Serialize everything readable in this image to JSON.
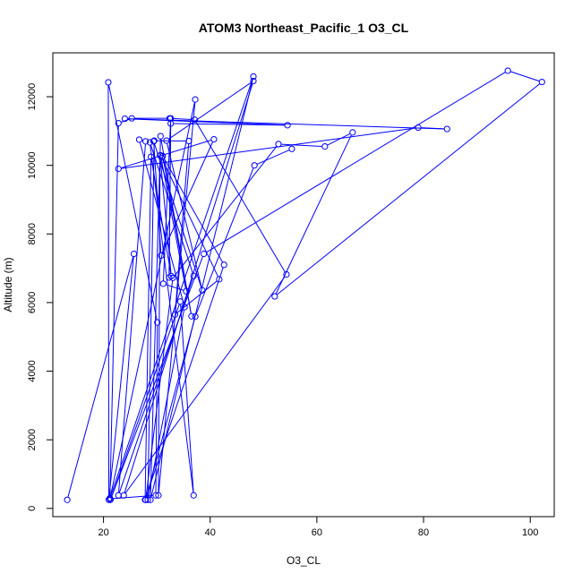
{
  "chart_data": {
    "type": "line",
    "title": "ATOM3 Northeast_Pacific_1 O3_CL",
    "xlabel": "O3_CL",
    "ylabel": "Altitude (m)",
    "xlim": [
      10.5,
      104.5
    ],
    "ylim": [
      -240,
      13280
    ],
    "x_ticks": [
      20,
      40,
      60,
      80,
      100
    ],
    "y_ticks": [
      0,
      2000,
      4000,
      6000,
      8000,
      10000,
      12000
    ],
    "grid": false,
    "series_color": "#0000ff",
    "series": [
      {
        "points": [
          [
            13.2,
            250
          ],
          [
            25.7,
            7420
          ],
          [
            21.0,
            250
          ],
          [
            20.9,
            12420
          ],
          [
            30.1,
            5420
          ],
          [
            29.8,
            380
          ],
          [
            21.2,
            280
          ],
          [
            37.2,
            11920
          ],
          [
            30.3,
            380
          ],
          [
            30.6,
            10290
          ],
          [
            32.7,
            6770
          ],
          [
            28.9,
            10250
          ],
          [
            27.8,
            250
          ],
          [
            42.6,
            7100
          ],
          [
            31.1,
            10270
          ],
          [
            36.5,
            5600
          ],
          [
            30.7,
            10850
          ],
          [
            28.8,
            250
          ],
          [
            48.1,
            12590
          ],
          [
            21.2,
            300
          ],
          [
            22.8,
            11230
          ],
          [
            25.3,
            11370
          ],
          [
            32.4,
            11370
          ],
          [
            37.1,
            11330
          ],
          [
            54.3,
            6820
          ],
          [
            23.8,
            380
          ],
          [
            48.1,
            12460
          ],
          [
            31.8,
            10720
          ],
          [
            38.5,
            6360
          ],
          [
            29.4,
            10700
          ],
          [
            30.8,
            7370
          ],
          [
            40.7,
            10760
          ],
          [
            22.8,
            9900
          ],
          [
            79.0,
            11100
          ],
          [
            84.4,
            11060
          ],
          [
            24.0,
            11360
          ],
          [
            54.5,
            11170
          ],
          [
            32.6,
            11220
          ],
          [
            32.3,
            6730
          ],
          [
            32.6,
            11370
          ],
          [
            31.2,
            6550
          ],
          [
            35.5,
            6330
          ],
          [
            30.7,
            10290
          ],
          [
            41.7,
            6680
          ],
          [
            33.4,
            5650
          ],
          [
            36.0,
            10710
          ],
          [
            29.5,
            10720
          ],
          [
            28.3,
            250
          ],
          [
            35.2,
            5870
          ],
          [
            26.7,
            10750
          ],
          [
            27.9,
            10700
          ],
          [
            22.8,
            380
          ],
          [
            36.9,
            6780
          ],
          [
            28.7,
            10670
          ],
          [
            36.9,
            380
          ],
          [
            34.4,
            6030
          ],
          [
            21.3,
            250
          ],
          [
            38.8,
            7420
          ],
          [
            95.8,
            12760
          ],
          [
            102.2,
            12430
          ],
          [
            52.1,
            6180
          ],
          [
            66.7,
            10960
          ],
          [
            61.5,
            10550
          ],
          [
            52.8,
            10620
          ],
          [
            33.0,
            6720
          ],
          [
            27.9,
            250
          ],
          [
            37.2,
            5590
          ],
          [
            48.3,
            10000
          ],
          [
            55.3,
            10480
          ]
        ]
      }
    ]
  }
}
